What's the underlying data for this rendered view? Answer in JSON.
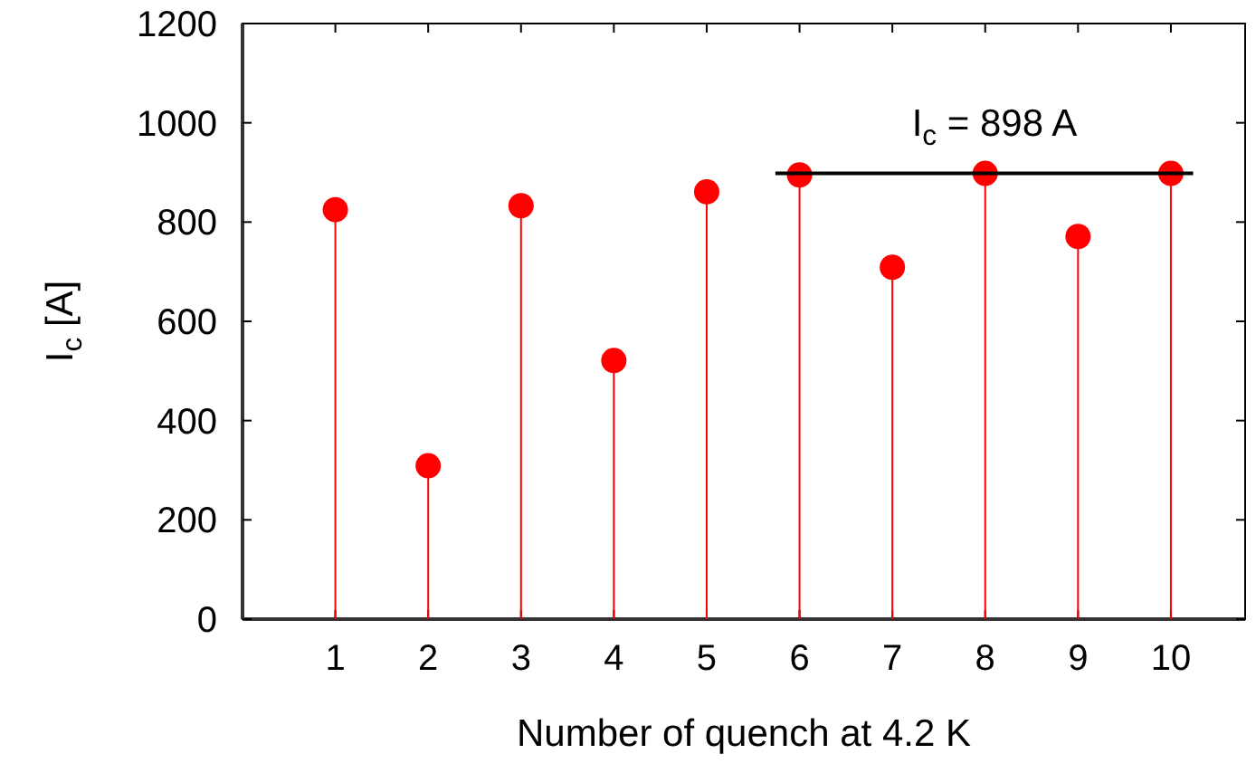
{
  "chart_data": {
    "type": "lollipop",
    "xlabel": "Number of quench at 4.2 K",
    "ylabel": "I$_{c}$ [A]",
    "x": [
      1,
      2,
      3,
      4,
      5,
      6,
      7,
      8,
      9,
      10
    ],
    "series": [
      {
        "color": "#ff0000",
        "marker": "circle",
        "values": [
          825,
          309,
          833,
          521,
          861,
          895,
          709,
          898,
          771,
          898
        ]
      },
      {
        "type": "line",
        "color": "#000000",
        "x": [
          5.74,
          10.24
        ],
        "values": [
          898,
          898
        ]
      }
    ],
    "annotations": [
      {
        "text": "I$_{c}$ = 898 A",
        "x": 8.1,
        "y": 898
      }
    ],
    "xlim": [
      0,
      10.8
    ],
    "xticks": [
      1,
      2,
      3,
      4,
      5,
      6,
      7,
      8,
      9,
      10
    ],
    "ylim": [
      0,
      1200
    ],
    "yticks": [
      0,
      200,
      400,
      600,
      800,
      1000,
      1200
    ],
    "grid": false
  }
}
